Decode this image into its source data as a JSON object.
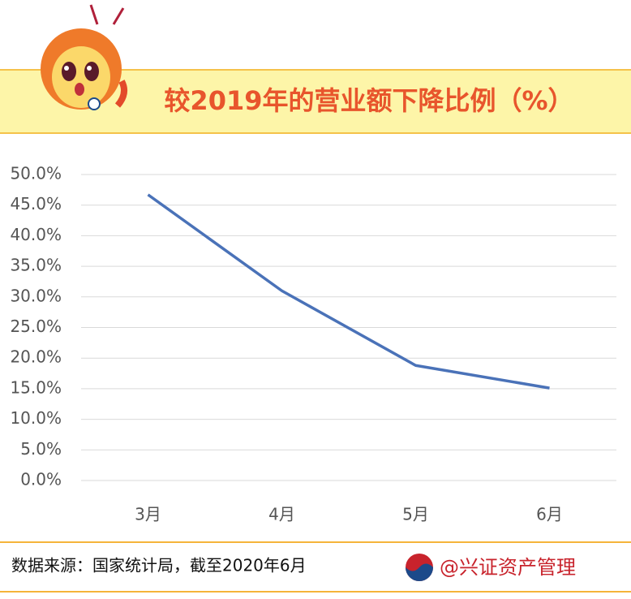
{
  "chart_data": {
    "type": "line",
    "title": "较2019年的营业额下降比例（%）",
    "categories": [
      "3月",
      "4月",
      "5月",
      "6月"
    ],
    "series": [
      {
        "name": "营业额下降比例",
        "color": "#4a72b8",
        "values": [
          46.7,
          31.0,
          18.8,
          15.1
        ]
      }
    ],
    "ylim": [
      0,
      50
    ],
    "yticks": [
      {
        "value": 0,
        "label": "0.0%"
      },
      {
        "value": 5,
        "label": "5.0%"
      },
      {
        "value": 10,
        "label": "10.0%"
      },
      {
        "value": 15,
        "label": "15.0%"
      },
      {
        "value": 20,
        "label": "20.0%"
      },
      {
        "value": 25,
        "label": "25.0%"
      },
      {
        "value": 30,
        "label": "30.0%"
      },
      {
        "value": 35,
        "label": "35.0%"
      },
      {
        "value": 40,
        "label": "40.0%"
      },
      {
        "value": 45,
        "label": "45.0%"
      },
      {
        "value": 50,
        "label": "50.0%"
      }
    ],
    "grid": true
  },
  "footer": {
    "source": "数据来源：国家统计局，截至2020年6月",
    "brand": "@兴证资产管理"
  }
}
